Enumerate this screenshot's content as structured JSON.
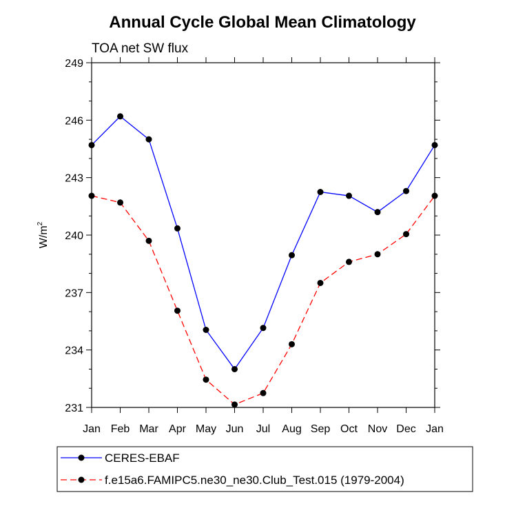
{
  "chart_data": {
    "type": "line",
    "title": "Annual Cycle Global Mean Climatology",
    "subtitle": "TOA net SW flux",
    "xlabel": "",
    "ylabel": "W/m",
    "ylabel_superscript": "2",
    "categories": [
      "Jan",
      "Feb",
      "Mar",
      "Apr",
      "May",
      "Jun",
      "Jul",
      "Aug",
      "Sep",
      "Oct",
      "Nov",
      "Dec",
      "Jan"
    ],
    "ylim": [
      231,
      249
    ],
    "yticks": [
      "231",
      "234",
      "237",
      "240",
      "243",
      "246",
      "249"
    ],
    "grid": false,
    "legend_position": "bottom",
    "series": [
      {
        "name": "CERES-EBAF",
        "color": "#0000ff",
        "dash": "solid",
        "values": [
          244.7,
          246.2,
          245.0,
          240.35,
          235.05,
          233.0,
          235.15,
          238.95,
          242.25,
          242.05,
          241.2,
          242.3,
          244.7
        ]
      },
      {
        "name": "f.e15a6.FAMIPC5.ne30_ne30.Club_Test.015 (1979-2004)",
        "color": "#ff0000",
        "dash": "dashed",
        "values": [
          242.05,
          241.7,
          239.7,
          236.05,
          232.45,
          231.15,
          231.75,
          234.3,
          237.5,
          238.6,
          239.0,
          240.05,
          242.05
        ]
      }
    ]
  }
}
